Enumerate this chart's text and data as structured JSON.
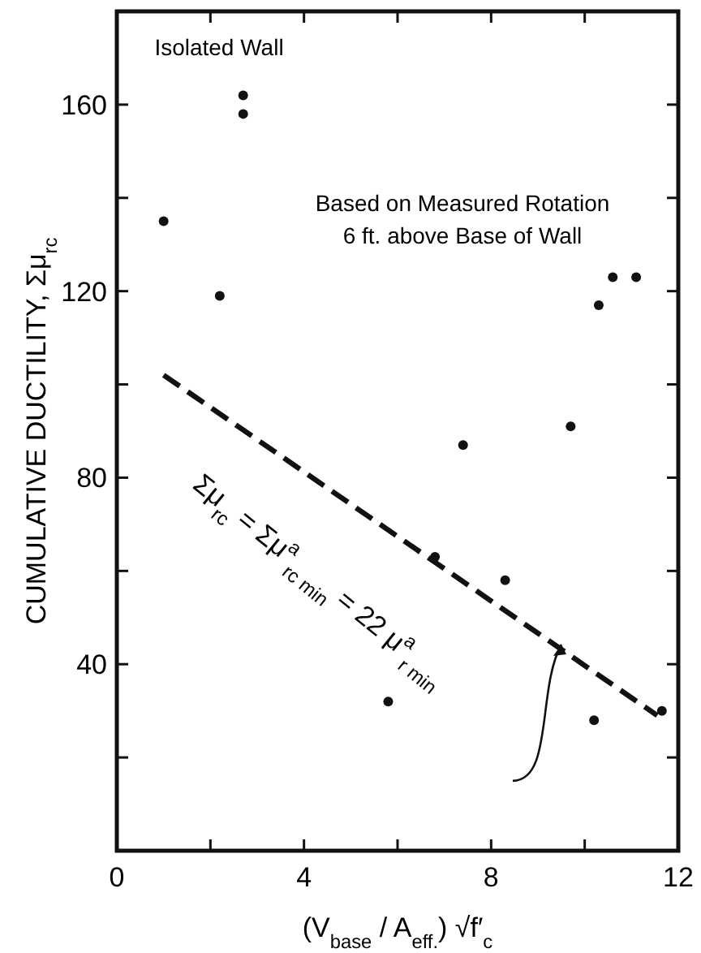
{
  "chart_data": {
    "type": "scatter",
    "xlabel": "(V$_{base}$ / A$_{eff.}$) √f′$_{c}$",
    "ylabel": "CUMULATIVE   DUCTILITY,  Σμ$_{rc}$",
    "xlim": [
      0,
      12
    ],
    "ylim": [
      0,
      180
    ],
    "xticks": [
      0,
      {
        "value": 2,
        "label": null
      },
      4,
      {
        "value": 6,
        "label": null
      },
      8,
      {
        "value": 10,
        "label": null
      },
      12
    ],
    "yticks": [
      {
        "value": 20,
        "label": null
      },
      40,
      {
        "value": 60,
        "label": null
      },
      80,
      {
        "value": 100,
        "label": null
      },
      120,
      {
        "value": 140,
        "label": null
      },
      160
    ],
    "grid": false,
    "marker": "circle",
    "series": [
      {
        "color": "#111111",
        "x": [
          1.0,
          2.7,
          2.7,
          2.2,
          10.3,
          10.6,
          11.1,
          7.4,
          9.7,
          6.8,
          8.3,
          5.8,
          10.2,
          11.65
        ],
        "values": [
          135,
          162,
          158,
          119,
          117,
          123,
          123,
          87,
          91,
          63,
          58,
          32,
          28,
          30
        ]
      },
      {
        "type": "line",
        "color": "#111111",
        "line_style": "dashed",
        "marker": "none",
        "x": [
          1.0,
          11.55
        ],
        "values": [
          102,
          29
        ]
      }
    ],
    "annotations": [
      "Isolated Wall",
      "Based on Measured Rotation",
      "6 ft. above Base of Wall",
      "Σμ$_{rc}$ = Σμ$^{a}$$_{rc min}$ = 22 μ$^{a}$$_{r min}$"
    ]
  }
}
